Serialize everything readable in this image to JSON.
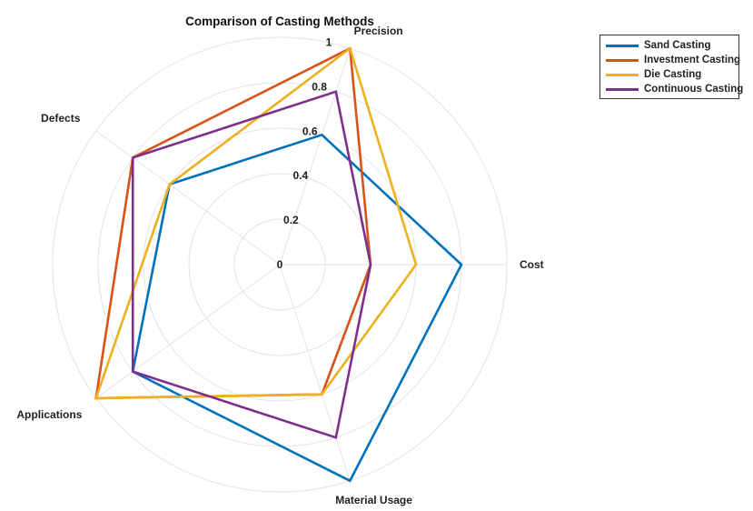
{
  "chart_data": {
    "type": "radar",
    "title": "Comparison of Casting Methods",
    "axes": [
      "Cost",
      "Precision",
      "Defects",
      "Applications",
      "Material Usage"
    ],
    "rlim": [
      0,
      1
    ],
    "rticks": [
      0,
      0.2,
      0.4,
      0.6,
      0.8,
      1
    ],
    "rtick_labels": [
      "0",
      "0.2",
      "0.4",
      "0.6",
      "0.8",
      "1"
    ],
    "grid": true,
    "legend_position": "top-right",
    "series": [
      {
        "name": "Sand Casting",
        "color": "#0072BD",
        "values": [
          0.8,
          0.6,
          0.6,
          0.8,
          1.0
        ]
      },
      {
        "name": "Investment Casting",
        "color": "#D95319",
        "values": [
          0.4,
          1.0,
          0.8,
          1.0,
          0.6
        ]
      },
      {
        "name": "Die Casting",
        "color": "#EDB120",
        "values": [
          0.6,
          1.0,
          0.6,
          1.0,
          0.6
        ]
      },
      {
        "name": "Continuous Casting",
        "color": "#7E2F8E",
        "values": [
          0.4,
          0.8,
          0.8,
          0.8,
          0.8
        ]
      }
    ]
  }
}
